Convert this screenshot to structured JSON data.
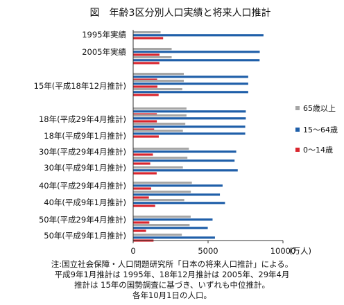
{
  "chart_data": {
    "type": "bar",
    "orientation": "horizontal",
    "title": "図　年齢3区分別人口実績と将来人口推計",
    "categories": [
      "1995年実績",
      "2005年実績",
      "15年(平成18年12月推計)",
      "18年(平成29年4月推計)",
      "18年(平成9年1月推計)",
      "30年(平成29年4月推計)",
      "30年(平成9年1月推計)",
      "40年(平成29年4月推計)",
      "40年(平成9年1月推計)",
      "50年(平成29年4月推計)",
      "50年(平成9年1月推計)"
    ],
    "bar_groups": [
      {
        "category_index": 0,
        "values": {
          "65歳以上": 1830,
          "15〜64歳": 8700,
          "0〜14歳": 2000
        }
      },
      {
        "category_index": 1,
        "values": {
          "65歳以上": 2570,
          "15〜64歳": 8450,
          "0〜14歳": 1760
        }
      },
      {
        "category_index": 1,
        "values": {
          "65歳以上": 2570,
          "15〜64歳": 8440,
          "0〜14歳": 1750
        }
      },
      {
        "category_index": 2,
        "values": {
          "65歳以上": 3380,
          "15〜64歳": 7680,
          "0〜14歳": 1600
        }
      },
      {
        "category_index": 2,
        "values": {
          "65歳以上": 3380,
          "15〜64歳": 7680,
          "0〜14歳": 1620
        }
      },
      {
        "category_index": 2,
        "values": {
          "65歳以上": 3280,
          "15〜64歳": 7680,
          "0〜14歳": 1700
        }
      },
      {
        "category_index": 3,
        "values": {
          "65歳以上": 3560,
          "15〜64歳": 7520,
          "0〜14歳": 1580
        }
      },
      {
        "category_index": 3,
        "values": {
          "65歳以上": 3560,
          "15〜64歳": 7520,
          "0〜14歳": 1580
        }
      },
      {
        "category_index": 4,
        "values": {
          "65歳以上": 3480,
          "15〜64歳": 7480,
          "0〜14歳": 1400
        }
      },
      {
        "category_index": 4,
        "values": {
          "65歳以上": 3320,
          "15〜64歳": 7480,
          "0〜14歳": 1710
        }
      },
      {
        "category_index": 5,
        "values": {
          "65歳以上": 3720,
          "15〜64歳": 6880,
          "0〜14歳": 1320
        }
      },
      {
        "category_index": 5,
        "values": {
          "65歳以上": 3620,
          "15〜64歳": 6770,
          "0〜14歳": 1140
        }
      },
      {
        "category_index": 6,
        "values": {
          "65歳以上": 3320,
          "15〜64歳": 6980,
          "0〜14歳": 1570
        }
      },
      {
        "category_index": 7,
        "values": {
          "65歳以上": 3920,
          "15〜64歳": 5970,
          "0〜14歳": 1200
        }
      },
      {
        "category_index": 7,
        "values": {
          "65歳以上": 3850,
          "15〜64歳": 5790,
          "0〜14歳": 1050
        }
      },
      {
        "category_index": 8,
        "values": {
          "65歳以上": 3410,
          "15〜64歳": 6130,
          "0〜14歳": 1470
        }
      },
      {
        "category_index": 9,
        "values": {
          "65歳以上": 3840,
          "15〜64歳": 5300,
          "0〜14歳": 1080
        }
      },
      {
        "category_index": 9,
        "values": {
          "65歳以上": 3770,
          "15〜64歳": 4980,
          "0〜14歳": 860
        }
      },
      {
        "category_index": 10,
        "values": {
          "65歳以上": 3250,
          "15〜64歳": 5460,
          "0〜14歳": 1360
        }
      }
    ],
    "series": [
      {
        "name": "65歳以上",
        "color": "#a6a6a6"
      },
      {
        "name": "15〜64歳",
        "color": "#1f5fa9"
      },
      {
        "name": "0〜14歳",
        "color": "#d9262e"
      }
    ],
    "xlim": [
      0,
      10000
    ],
    "xticks": [
      "0",
      "5000",
      "10000"
    ],
    "xunit": "(万人)",
    "grid": false,
    "legend": "right"
  },
  "notes": [
    "注:国立社会保障・人口問題研究所「日本の将来人口推計」による。",
    "平成9年1月推計は 1995年、18年12月推計は 2005年、29年4月",
    "推計は 15年の国勢調査に基づき、いずれも中位推計。",
    "各年10月1日の人口。"
  ]
}
